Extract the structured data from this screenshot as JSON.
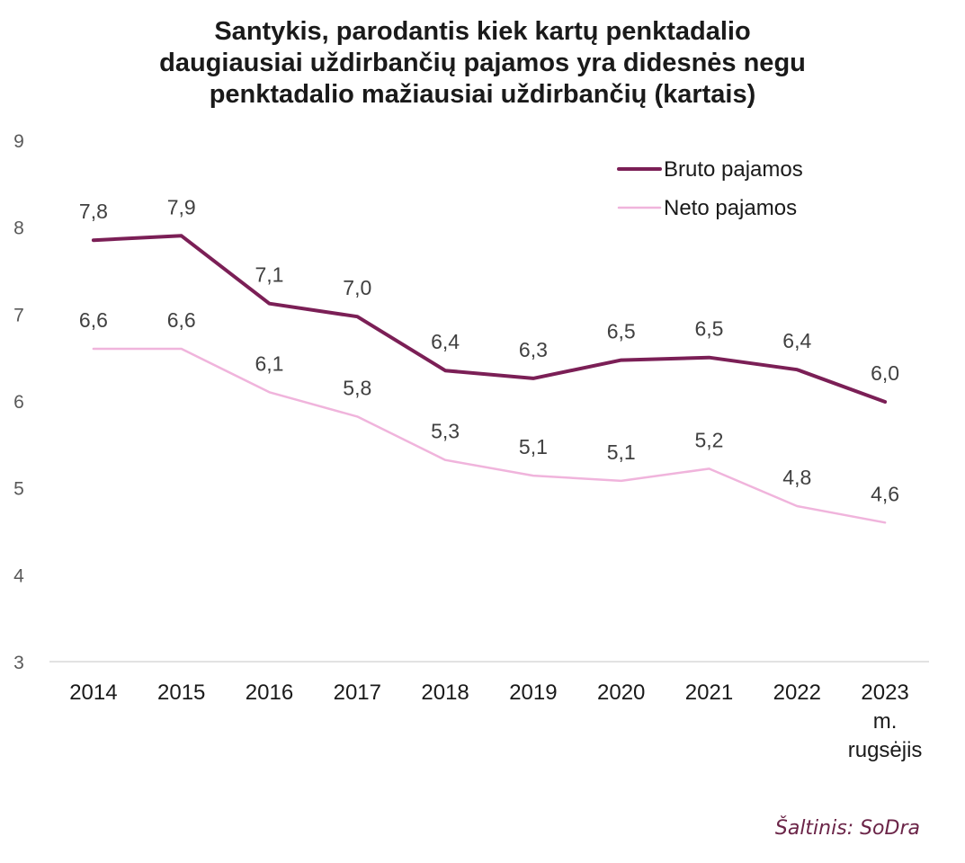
{
  "chart_data": {
    "type": "line",
    "title_lines": [
      "Santykis, parodantis kiek kartų penktadalio",
      "daugiausiai uždirbančių pajamos yra didesnės negu",
      "penktadalio mažiausiai uždirbančių (kartais)"
    ],
    "categories": [
      [
        "2014"
      ],
      [
        "2015"
      ],
      [
        "2016"
      ],
      [
        "2017"
      ],
      [
        "2018"
      ],
      [
        "2019"
      ],
      [
        "2020"
      ],
      [
        "2021"
      ],
      [
        "2022"
      ],
      [
        "2023",
        "m.",
        "rugsėjis"
      ]
    ],
    "ylim": [
      3,
      9
    ],
    "yticks": [
      "3",
      "4",
      "5",
      "6",
      "7",
      "8",
      "9"
    ],
    "grid": false,
    "legend_position": "top-right",
    "series": [
      {
        "name": "Bruto pajamos",
        "color": "#7b1f56",
        "values": [
          7.85,
          7.9,
          7.12,
          6.97,
          6.35,
          6.26,
          6.47,
          6.5,
          6.36,
          5.99
        ],
        "labels": [
          "7,8",
          "7,9",
          "7,1",
          "7,0",
          "6,4",
          "6,3",
          "6,5",
          "6,5",
          "6,4",
          "6,0"
        ]
      },
      {
        "name": "Neto pajamos",
        "color": "#f0b4dc",
        "values": [
          6.6,
          6.6,
          6.1,
          5.82,
          5.32,
          5.14,
          5.08,
          5.22,
          4.79,
          4.6
        ],
        "labels": [
          "6,6",
          "6,6",
          "6,1",
          "5,8",
          "5,3",
          "5,1",
          "5,1",
          "5,2",
          "4,8",
          "4,6"
        ]
      }
    ]
  },
  "source": "Šaltinis: SoDra"
}
